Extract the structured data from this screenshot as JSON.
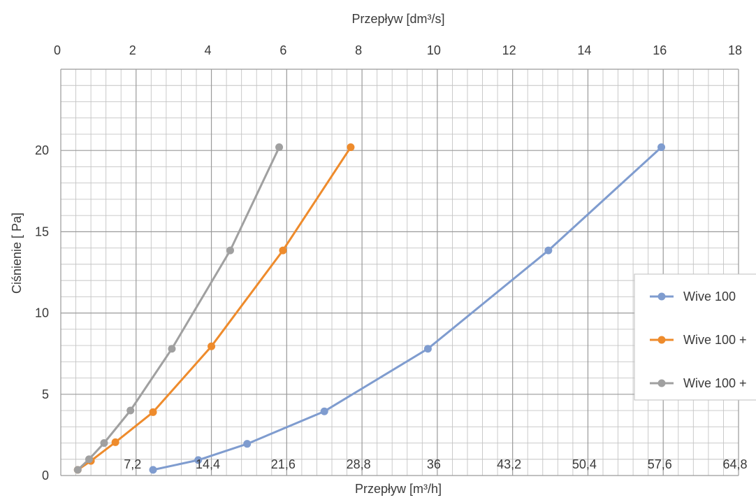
{
  "chart_data": {
    "type": "line",
    "top_axis": {
      "label": "Przepływ [dm³/s]",
      "ticks": [
        "0",
        "2",
        "4",
        "6",
        "8",
        "10",
        "12",
        "14",
        "16",
        "18"
      ],
      "range": [
        0,
        18
      ]
    },
    "bottom_axis": {
      "label": "Przepływ [m³/h]",
      "ticks": [
        "7,2",
        "14,4",
        "21,6",
        "28,8",
        "36",
        "43,2",
        "50,4",
        "57,6",
        "64,8"
      ],
      "range": [
        0,
        64.8
      ]
    },
    "y_axis": {
      "label": "Ciśnienie [ Pa]",
      "ticks": [
        "0",
        "5",
        "10",
        "15",
        "20"
      ],
      "range": [
        0,
        25
      ]
    },
    "grid": true,
    "legend_position": "right",
    "series": [
      {
        "name": "Wive 100",
        "color": "#7f9ccf",
        "x": [
          2.45,
          3.65,
          4.95,
          7.0,
          9.75,
          12.95,
          15.95
        ],
        "y": [
          0.35,
          0.95,
          1.95,
          3.95,
          7.8,
          13.85,
          20.2
        ]
      },
      {
        "name": "Wive 100 +",
        "color": "#ee8b2c",
        "x": [
          0.45,
          0.8,
          1.45,
          2.45,
          4.0,
          5.9,
          7.7
        ],
        "y": [
          0.35,
          0.9,
          2.05,
          3.9,
          7.95,
          13.85,
          20.2
        ]
      },
      {
        "name": "Wive 100 +",
        "color": "#a0a0a0",
        "x": [
          0.45,
          0.75,
          1.15,
          1.85,
          2.95,
          4.5,
          5.8
        ],
        "y": [
          0.35,
          1.0,
          2.0,
          4.0,
          7.8,
          13.85,
          20.2
        ]
      }
    ]
  }
}
